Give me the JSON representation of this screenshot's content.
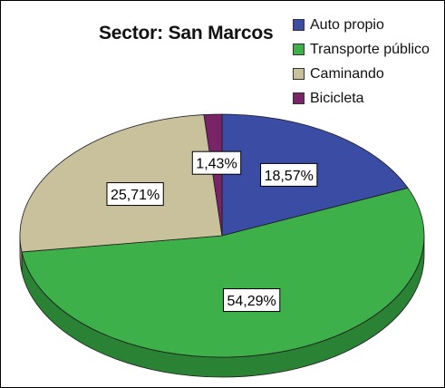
{
  "chart_data": {
    "type": "pie",
    "title": "Sector: San Marcos",
    "style": "3d",
    "start_angle_deg": 0,
    "direction": "clockwise",
    "legend_position": "top-right",
    "categories": [
      "Auto propio",
      "Transporte público",
      "Caminando",
      "Bicicleta"
    ],
    "values": [
      18.57,
      54.29,
      25.71,
      1.43
    ],
    "labels": [
      "18,57%",
      "54,29%",
      "25,71%",
      "1,43%"
    ],
    "colors": [
      "#3b4ca4",
      "#3db04a",
      "#c9c19c",
      "#7a2468"
    ],
    "side_colors": [
      "#26307a",
      "#2a8234",
      "#9e9674",
      "#551748"
    ]
  }
}
